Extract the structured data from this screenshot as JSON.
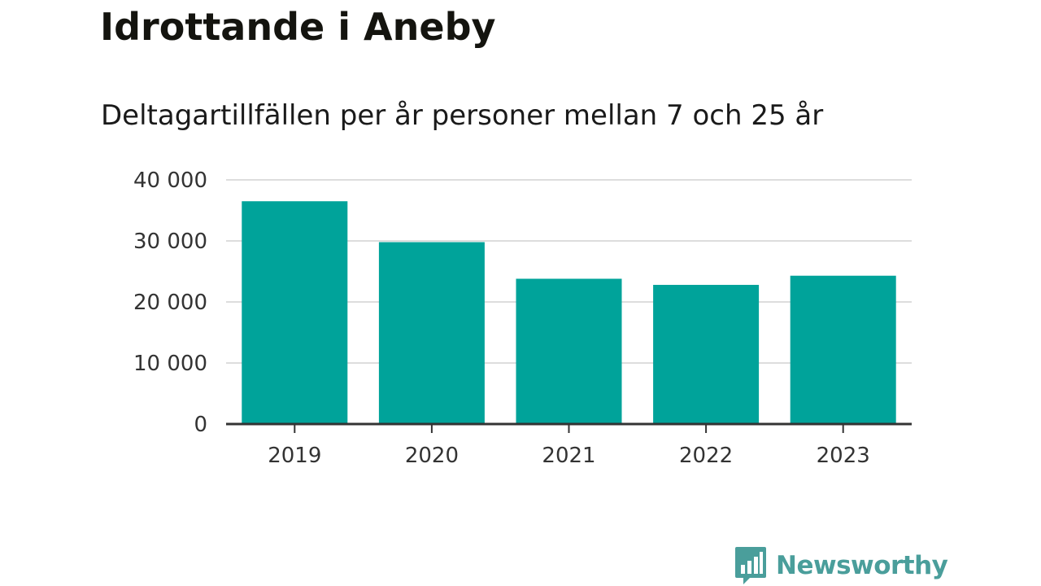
{
  "title": "Idrottande i Aneby",
  "subtitle": "Deltagartillfällen per år personer mellan 7 och 25 år",
  "brand": {
    "name": "Newsworthy",
    "logo_icon": "bar-chart-speech-bubble-icon",
    "color": "#4a9e9b"
  },
  "colors": {
    "bar": "#00a39a",
    "grid": "#dddddd",
    "axis": "#333333"
  },
  "chart_data": {
    "type": "bar",
    "categories": [
      "2019",
      "2020",
      "2021",
      "2022",
      "2023"
    ],
    "values": [
      36500,
      29800,
      23800,
      22800,
      24300
    ],
    "ylim": [
      0,
      40000
    ],
    "yticks": [
      0,
      10000,
      20000,
      30000,
      40000
    ],
    "ytick_labels": [
      "0",
      "10 000",
      "20 000",
      "30 000",
      "40 000"
    ],
    "grid": true,
    "legend": false
  }
}
